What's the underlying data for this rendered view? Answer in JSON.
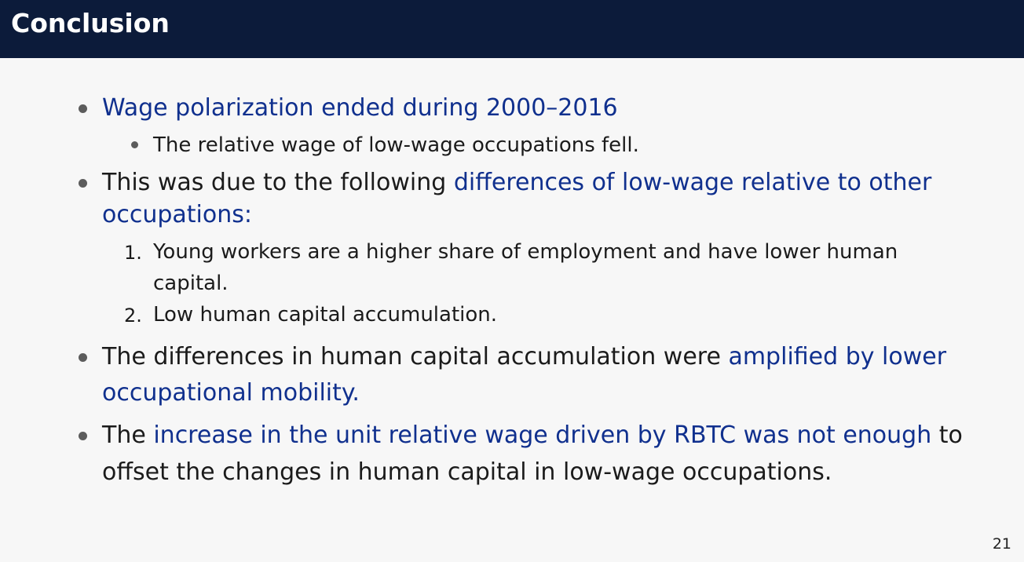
{
  "slide": {
    "title": "Conclusion",
    "page_number": "21"
  },
  "bullets": {
    "b1": {
      "text": "Wage polarization ended during 2000–2016",
      "sub1": "The relative wage of low-wage occupations fell."
    },
    "b2": {
      "lead": "This was due to the following ",
      "highlight1": "differences of low-wage relative to other",
      "highlight2": "occupations:",
      "items": [
        {
          "num": "1.",
          "line1": "Young workers are a higher share of employment and have lower human",
          "line2": "capital."
        },
        {
          "num": "2.",
          "line1": "Low human capital accumulation."
        }
      ]
    },
    "b3": {
      "lead": "The differences in human capital accumulation were ",
      "highlight1": "amplified by lower",
      "highlight2": "occupational mobility."
    },
    "b4": {
      "lead": "The ",
      "highlight": "increase in the unit relative wage driven by RBTC was not enough",
      "tail": " to",
      "line2": "offset the changes in human capital in low-wage occupations."
    }
  },
  "colors": {
    "header_bg": "#0c1b3a",
    "highlight": "#10308e",
    "background": "#f7f7f7"
  }
}
